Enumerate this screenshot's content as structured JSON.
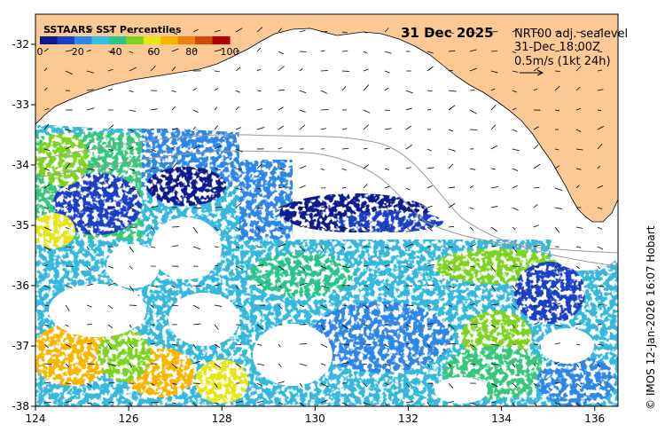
{
  "map": {
    "date_title": "31 Dec 2025",
    "product": {
      "line1": "NRT00 adj. sealevel",
      "line2": "31-Dec 18:00Z",
      "line3": "0.5m/s (1kt 24h)"
    },
    "colorbar": {
      "title": "SSTAARS SST Percentiles",
      "ticks": [
        "0",
        "20",
        "40",
        "60",
        "80",
        "100"
      ],
      "colors": [
        "#0a1a8c",
        "#1c3fc4",
        "#2e86e6",
        "#34c0e0",
        "#2bc48a",
        "#7ed321",
        "#e6e619",
        "#f7b500",
        "#f07f10",
        "#d04a0a",
        "#b00000"
      ]
    },
    "credit": "© IMOS 12-Jan-2026 16:07 Hobart",
    "x_ticks": [
      "124",
      "126",
      "128",
      "130",
      "132",
      "134",
      "136"
    ],
    "y_ticks": [
      "-32",
      "-33",
      "-34",
      "-35",
      "-36",
      "-37",
      "-38"
    ],
    "extent": {
      "lon_min": 124,
      "lon_max": 136.5,
      "lat_min": -38,
      "lat_max": -31.5
    },
    "colors": {
      "land": "#fcc994",
      "ocean": "#ffffff",
      "frame": "#000000",
      "bathy": "#9a9a9a"
    }
  }
}
